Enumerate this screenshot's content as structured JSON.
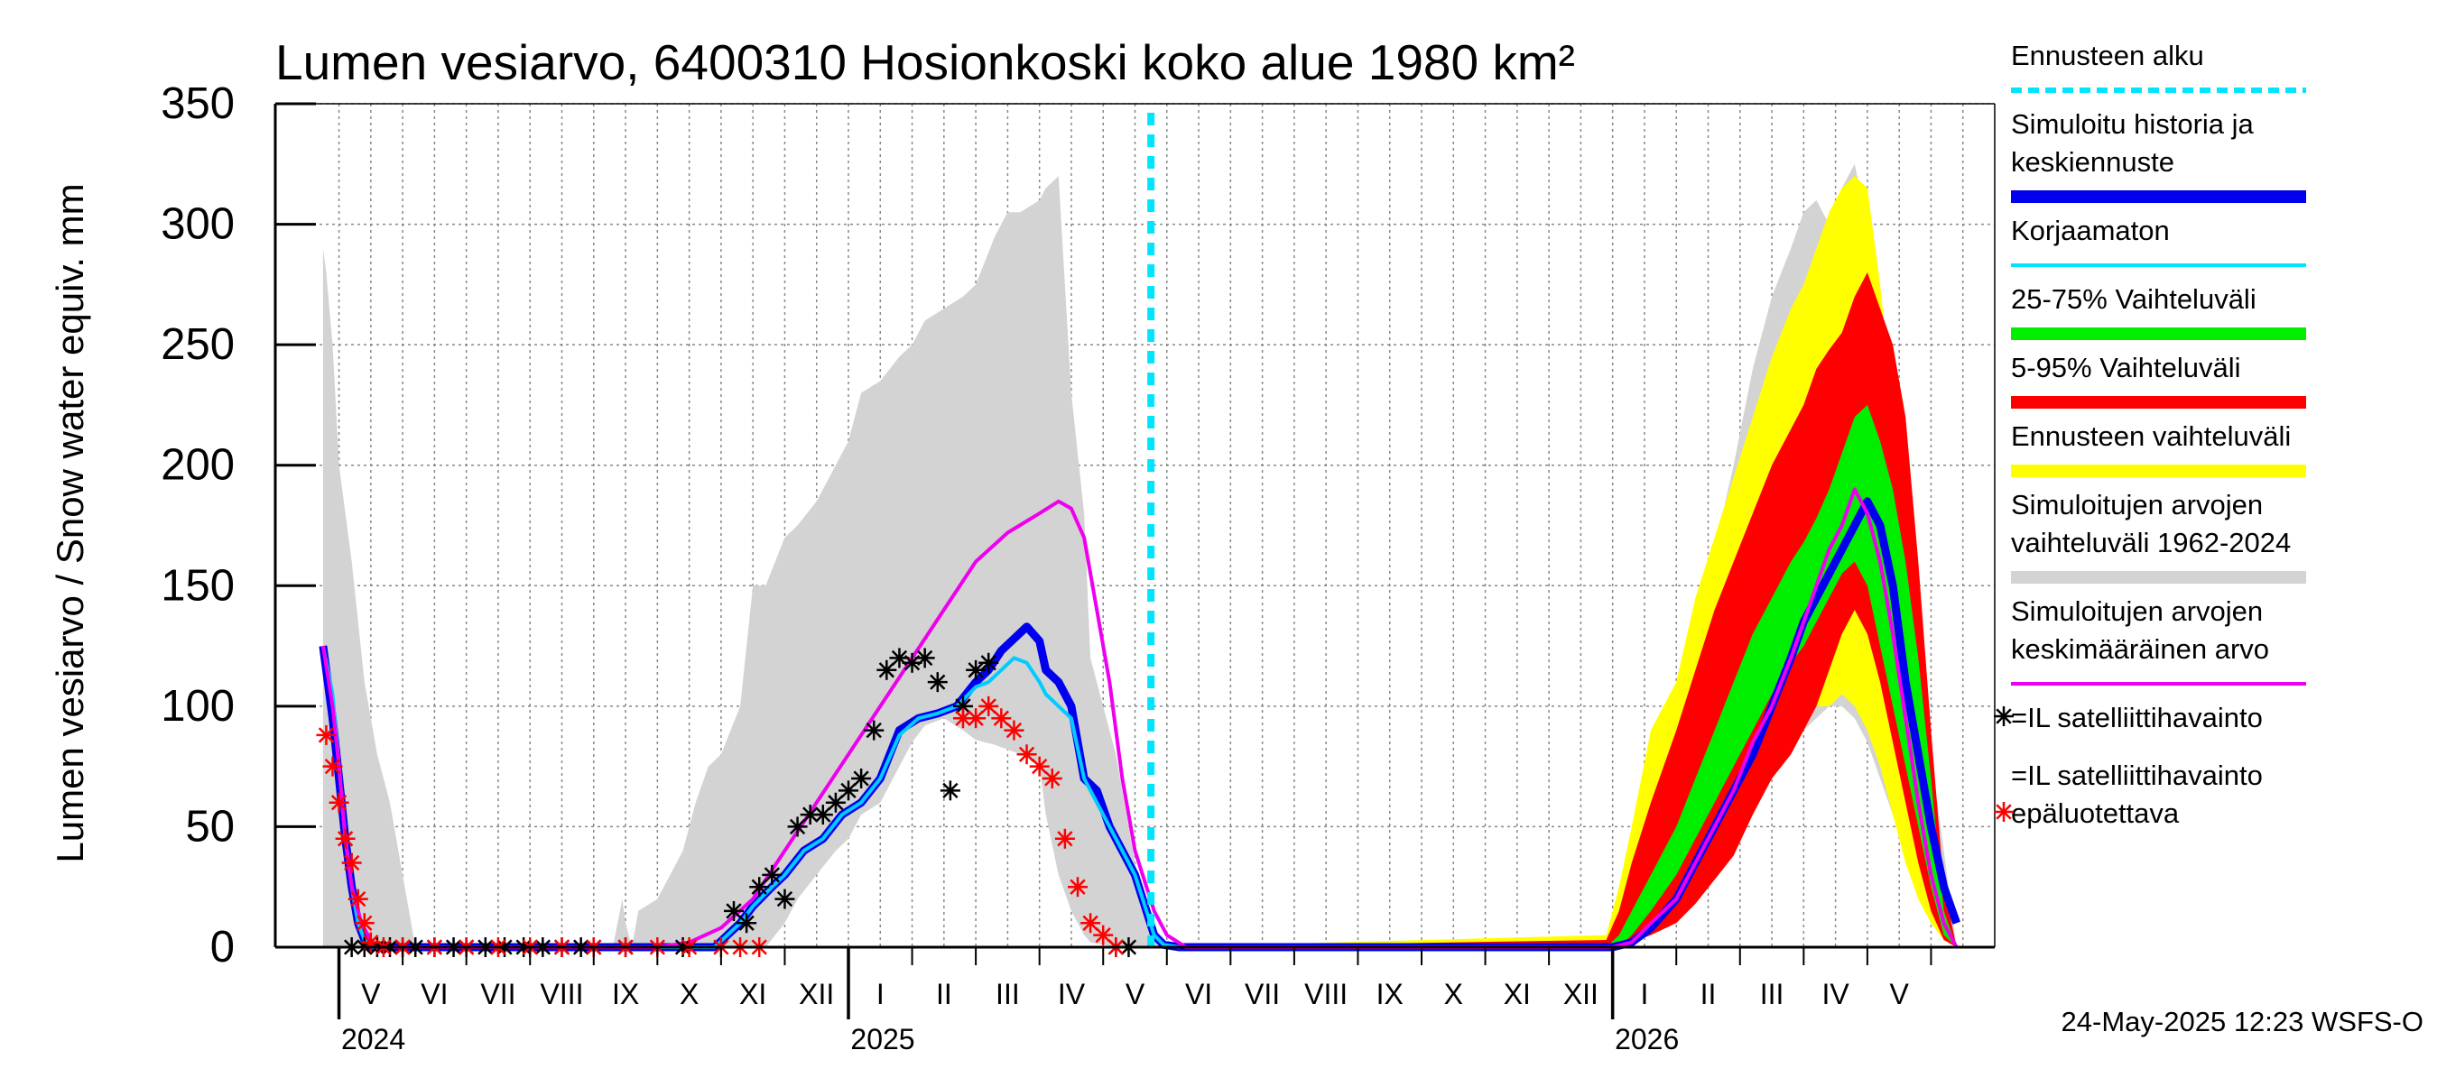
{
  "chart_data": {
    "type": "area",
    "title": "Lumen vesiarvo, 6400310 Hosionkoski koko alue 1980 km²",
    "ylabel": "Lumen vesiarvo / Snow water equiv.    mm",
    "ylim": [
      0,
      350
    ],
    "yticks": [
      0,
      50,
      100,
      150,
      200,
      250,
      300,
      350
    ],
    "x_unit": "months since 2024-04-01",
    "xlim": [
      0,
      27
    ],
    "months": [
      "V",
      "VI",
      "VII",
      "VIII",
      "IX",
      "X",
      "XI",
      "XII",
      "I",
      "II",
      "III",
      "IV",
      "V",
      "VI",
      "VII",
      "VIII",
      "IX",
      "X",
      "XI",
      "XII",
      "I",
      "II",
      "III",
      "IV",
      "V"
    ],
    "month_starts": [
      1,
      2,
      3,
      4,
      5,
      6,
      7,
      8,
      9,
      10,
      11,
      12,
      13,
      14,
      15,
      16,
      17,
      18,
      19,
      20,
      21,
      22,
      23,
      24,
      25
    ],
    "years": [
      {
        "label": "2024",
        "month": 1
      },
      {
        "label": "2025",
        "month": 9
      },
      {
        "label": "2026",
        "month": 21
      }
    ],
    "forecast_start": 13.75,
    "series": [
      {
        "name": "Simuloitujen arvojen vaihteluväli 1962-2024",
        "kind": "band",
        "color": "#d3d3d3",
        "x": [
          0.75,
          0.8,
          0.9,
          1.0,
          1.2,
          1.4,
          1.6,
          1.8,
          2.0,
          2.2,
          5.3,
          5.45,
          5.5,
          5.6,
          5.7,
          6.0,
          6.4,
          6.6,
          6.8,
          7.0,
          7.3,
          7.5,
          7.7,
          8.0,
          8.2,
          8.5,
          8.8,
          9.0,
          9.2,
          9.5,
          9.8,
          10.0,
          10.2,
          10.5,
          10.8,
          11.0,
          11.3,
          11.5,
          11.7,
          12.0,
          12.1,
          12.3,
          12.5,
          12.7,
          12.8,
          13.0,
          13.2,
          13.4,
          13.6,
          13.8,
          14.0,
          14.2,
          14.4,
          14.8,
          20.8,
          21.0,
          21.3,
          21.6,
          22.0,
          22.3,
          22.6,
          22.9,
          23.2,
          23.5,
          23.8,
          24.0,
          24.2,
          24.4,
          24.6,
          24.8,
          25.0,
          25.2,
          25.4,
          25.6,
          25.8,
          26.0,
          26.2,
          26.4
        ],
        "lower": [
          0,
          0,
          0,
          0,
          0,
          0,
          0,
          0,
          0,
          0,
          0,
          0,
          0,
          0,
          0,
          0,
          0,
          0,
          0,
          0,
          0,
          0,
          0,
          10,
          20,
          30,
          40,
          45,
          55,
          60,
          75,
          85,
          92,
          95,
          90,
          86,
          84,
          82,
          80,
          75,
          55,
          30,
          15,
          5,
          2,
          1,
          0,
          0,
          0,
          0,
          0,
          0,
          0,
          0,
          0,
          0,
          3,
          10,
          20,
          30,
          40,
          50,
          60,
          70,
          80,
          90,
          95,
          100,
          100,
          95,
          85,
          70,
          55,
          40,
          25,
          15,
          5,
          0
        ],
        "upper": [
          290,
          280,
          250,
          200,
          160,
          110,
          80,
          60,
          30,
          0,
          0,
          20,
          10,
          0,
          15,
          20,
          40,
          60,
          75,
          80,
          100,
          150,
          150,
          170,
          175,
          185,
          200,
          210,
          230,
          235,
          245,
          250,
          260,
          265,
          270,
          275,
          295,
          305,
          305,
          310,
          315,
          320,
          230,
          180,
          120,
          100,
          80,
          50,
          20,
          5,
          0,
          0,
          0,
          0,
          0,
          5,
          20,
          45,
          80,
          130,
          165,
          200,
          240,
          270,
          290,
          305,
          310,
          300,
          315,
          325,
          300,
          250,
          200,
          150,
          120,
          80,
          40,
          0
        ]
      },
      {
        "name": "Ennusteen vaihteluväli",
        "kind": "band",
        "color": "#ffff00",
        "x": [
          13.8,
          20.9,
          21.1,
          21.3,
          21.6,
          22.0,
          22.3,
          22.6,
          22.9,
          23.2,
          23.5,
          23.8,
          24.0,
          24.2,
          24.4,
          24.6,
          24.8,
          25.0,
          25.2,
          25.4,
          25.6,
          25.8,
          26.0,
          26.2,
          26.4
        ],
        "lower": [
          0,
          0,
          5,
          10,
          15,
          20,
          30,
          40,
          55,
          70,
          80,
          90,
          95,
          100,
          100,
          105,
          100,
          90,
          75,
          55,
          35,
          20,
          10,
          3,
          0
        ],
        "upper": [
          0,
          5,
          25,
          50,
          90,
          110,
          145,
          170,
          195,
          220,
          245,
          265,
          275,
          290,
          305,
          315,
          320,
          315,
          275,
          225,
          170,
          120,
          70,
          20,
          0
        ]
      },
      {
        "name": "5-95% Vaihteluväli",
        "kind": "band",
        "color": "#ff0000",
        "x": [
          13.8,
          20.9,
          21.1,
          21.3,
          21.6,
          22.0,
          22.3,
          22.6,
          22.9,
          23.2,
          23.5,
          23.8,
          24.0,
          24.2,
          24.4,
          24.6,
          24.8,
          25.0,
          25.2,
          25.4,
          25.6,
          25.8,
          26.0,
          26.2,
          26.4
        ],
        "lower": [
          0,
          0,
          0,
          2,
          5,
          10,
          18,
          28,
          38,
          55,
          70,
          80,
          90,
          100,
          115,
          130,
          140,
          130,
          110,
          85,
          60,
          35,
          15,
          3,
          0
        ],
        "upper": [
          0,
          3,
          15,
          35,
          60,
          90,
          115,
          140,
          160,
          180,
          200,
          215,
          225,
          240,
          248,
          255,
          270,
          280,
          265,
          250,
          220,
          160,
          90,
          25,
          0
        ]
      },
      {
        "name": "25-75% Vaihteluväli",
        "kind": "band",
        "color": "#00ee00",
        "x": [
          13.8,
          20.9,
          21.1,
          21.3,
          21.6,
          22.0,
          22.3,
          22.6,
          22.9,
          23.2,
          23.5,
          23.8,
          24.0,
          24.2,
          24.4,
          24.6,
          24.8,
          25.0,
          25.2,
          25.4,
          25.6,
          25.8,
          26.0,
          26.2,
          26.4
        ],
        "lower": [
          0,
          0,
          0,
          5,
          15,
          30,
          45,
          60,
          75,
          90,
          105,
          118,
          125,
          135,
          145,
          155,
          160,
          150,
          125,
          100,
          75,
          50,
          25,
          5,
          0
        ],
        "upper": [
          0,
          0,
          5,
          15,
          30,
          50,
          70,
          90,
          110,
          130,
          145,
          160,
          168,
          178,
          190,
          205,
          220,
          225,
          210,
          190,
          160,
          120,
          70,
          15,
          0
        ]
      },
      {
        "name": "Simuloitu historia ja keskiennuste",
        "kind": "line",
        "color": "#0000ee",
        "width": 9,
        "x": [
          0.75,
          0.9,
          1.0,
          1.1,
          1.2,
          1.3,
          1.4,
          1.5,
          6.9,
          7.1,
          7.3,
          7.5,
          7.8,
          8.0,
          8.3,
          8.6,
          8.9,
          9.2,
          9.5,
          9.8,
          10.1,
          10.4,
          10.7,
          11.0,
          11.2,
          11.4,
          11.6,
          11.8,
          12.0,
          12.1,
          12.3,
          12.5,
          12.7,
          12.9,
          13.1,
          13.3,
          13.5,
          13.8,
          13.95,
          14.2,
          20.8,
          21.0,
          21.3,
          21.6,
          22.0,
          22.3,
          22.6,
          22.9,
          23.2,
          23.5,
          23.8,
          24.0,
          24.2,
          24.4,
          24.6,
          24.8,
          25.0,
          25.2,
          25.4,
          25.6,
          25.8,
          26.0,
          26.2,
          26.4
        ],
        "y": [
          125,
          95,
          70,
          45,
          25,
          10,
          3,
          0,
          0,
          5,
          10,
          17,
          25,
          30,
          40,
          45,
          55,
          60,
          70,
          90,
          95,
          97,
          100,
          110,
          115,
          123,
          128,
          133,
          127,
          115,
          110,
          100,
          70,
          65,
          50,
          40,
          30,
          5,
          1,
          0,
          0,
          0,
          2,
          8,
          20,
          35,
          50,
          65,
          80,
          100,
          120,
          135,
          145,
          155,
          165,
          175,
          185,
          175,
          150,
          110,
          80,
          50,
          25,
          10
        ]
      },
      {
        "name": "Korjaamaton",
        "kind": "line",
        "color": "#00ccff",
        "width": 4,
        "x": [
          0.75,
          0.9,
          1.0,
          1.1,
          1.2,
          1.3,
          1.4,
          1.5,
          6.9,
          7.1,
          7.3,
          7.5,
          7.8,
          8.0,
          8.3,
          8.6,
          8.9,
          9.2,
          9.5,
          9.8,
          10.1,
          10.4,
          10.7,
          11.0,
          11.2,
          11.4,
          11.6,
          11.8,
          12.0,
          12.1,
          12.3,
          12.5,
          12.7,
          12.9,
          13.1,
          13.3,
          13.5,
          13.8,
          13.95,
          14.2
        ],
        "y": [
          125,
          105,
          75,
          45,
          25,
          10,
          3,
          0,
          0,
          5,
          10,
          17,
          25,
          30,
          40,
          45,
          55,
          60,
          70,
          88,
          95,
          97,
          100,
          108,
          110,
          115,
          120,
          118,
          110,
          105,
          100,
          95,
          70,
          60,
          50,
          40,
          30,
          5,
          1,
          0
        ]
      },
      {
        "name": "Simuloitujen arvojen keskimääräinen arvo",
        "kind": "line",
        "color": "#ee00ee",
        "width": 4,
        "x": [
          0.75,
          0.9,
          1.0,
          1.1,
          1.2,
          1.35,
          1.5,
          1.6,
          6.0,
          6.5,
          7.0,
          7.5,
          8.0,
          8.5,
          9.0,
          9.5,
          10.0,
          10.5,
          11.0,
          11.5,
          12.0,
          12.3,
          12.5,
          12.7,
          12.9,
          13.1,
          13.3,
          13.5,
          13.8,
          14.0,
          14.3,
          20.8,
          21.0,
          21.3,
          21.6,
          22.0,
          22.3,
          22.6,
          22.9,
          23.2,
          23.5,
          23.8,
          24.0,
          24.2,
          24.4,
          24.6,
          24.8,
          25.0,
          25.2,
          25.4,
          25.6,
          25.8,
          26.0,
          26.2,
          26.4
        ],
        "y": [
          125,
          100,
          75,
          45,
          25,
          10,
          3,
          0,
          0,
          2,
          8,
          20,
          40,
          60,
          80,
          100,
          120,
          140,
          160,
          172,
          180,
          185,
          182,
          170,
          140,
          110,
          70,
          40,
          15,
          5,
          0,
          0,
          0,
          2,
          10,
          20,
          35,
          50,
          65,
          85,
          100,
          120,
          135,
          150,
          165,
          175,
          190,
          180,
          160,
          130,
          95,
          60,
          30,
          10,
          0
        ]
      },
      {
        "name": "=IL satelliittihavainto",
        "kind": "markers",
        "color": "#000000",
        "marker": "*",
        "x": [
          1.2,
          1.4,
          1.6,
          1.8,
          2.0,
          2.2,
          2.5,
          2.8,
          3.0,
          3.3,
          3.6,
          3.9,
          4.2,
          4.5,
          4.8,
          5.0,
          5.5,
          6.4,
          7.2,
          7.4,
          7.6,
          7.8,
          8.0,
          8.2,
          8.4,
          8.6,
          8.8,
          9.0,
          9.2,
          9.4,
          9.6,
          9.8,
          10.0,
          10.2,
          10.4,
          10.6,
          10.8,
          11.0,
          11.2,
          13.2,
          13.4
        ],
        "y": [
          0,
          0,
          0,
          0,
          0,
          0,
          0,
          0,
          0,
          0,
          0,
          0,
          0,
          0,
          0,
          0,
          0,
          0,
          15,
          10,
          25,
          30,
          20,
          50,
          55,
          55,
          60,
          65,
          70,
          90,
          115,
          120,
          118,
          120,
          110,
          65,
          100,
          115,
          118,
          0,
          0
        ]
      },
      {
        "name": "=IL satelliittihavainto epäluotettava",
        "kind": "markers",
        "color": "#ff0000",
        "marker": "*",
        "x": [
          0.8,
          0.9,
          1.0,
          1.1,
          1.2,
          1.3,
          1.4,
          1.5,
          1.7,
          2.0,
          2.5,
          3.0,
          3.5,
          4.0,
          4.5,
          5.0,
          5.5,
          6.0,
          6.5,
          7.0,
          7.3,
          7.6,
          10.8,
          11.0,
          11.2,
          11.4,
          11.6,
          11.8,
          12.0,
          12.2,
          12.4,
          12.6,
          12.8,
          13.0,
          13.2
        ],
        "y": [
          88,
          75,
          60,
          45,
          35,
          20,
          10,
          2,
          0,
          0,
          0,
          0,
          0,
          0,
          0,
          0,
          0,
          0,
          0,
          0,
          0,
          0,
          95,
          95,
          100,
          95,
          90,
          80,
          75,
          70,
          45,
          25,
          10,
          5,
          0
        ]
      }
    ],
    "legend_position": "right"
  },
  "legend": {
    "items": [
      {
        "label_lines": [
          "Ennusteen alku"
        ],
        "color": "#00e5ff",
        "style": "dash",
        "icon": "dashed-line-icon"
      },
      {
        "label_lines": [
          "Simuloitu historia ja",
          "keskiennuste"
        ],
        "color": "#0000ee",
        "style": "thick",
        "icon": "thick-line-icon"
      },
      {
        "label_lines": [
          "Korjaamaton"
        ],
        "color": "#00e5ff",
        "style": "thin",
        "icon": "line-icon"
      },
      {
        "label_lines": [
          "25-75% Vaihteluväli"
        ],
        "color": "#00ee00",
        "style": "thick",
        "icon": "thick-line-icon"
      },
      {
        "label_lines": [
          "5-95% Vaihteluväli"
        ],
        "color": "#ff0000",
        "style": "thick",
        "icon": "thick-line-icon"
      },
      {
        "label_lines": [
          "Ennusteen vaihteluväli"
        ],
        "color": "#ffff00",
        "style": "thick",
        "icon": "thick-line-icon"
      },
      {
        "label_lines": [
          "Simuloitujen arvojen",
          "vaihteluväli 1962-2024"
        ],
        "color": "#d3d3d3",
        "style": "thick",
        "icon": "thick-line-icon"
      },
      {
        "label_lines": [
          "Simuloitujen arvojen",
          "keskimääräinen arvo"
        ],
        "color": "#ee00ee",
        "style": "thin",
        "icon": "line-icon"
      },
      {
        "label_lines": [
          "=IL satelliittihavainto"
        ],
        "color": "#000000",
        "style": "marker",
        "icon": "asterisk-icon"
      },
      {
        "label_lines": [
          "=IL satelliittihavainto",
          "epäluotettava"
        ],
        "color": "#ff0000",
        "style": "marker",
        "icon": "asterisk-icon"
      }
    ]
  },
  "footer": {
    "timestamp": "24-May-2025 12:23 WSFS-O"
  }
}
